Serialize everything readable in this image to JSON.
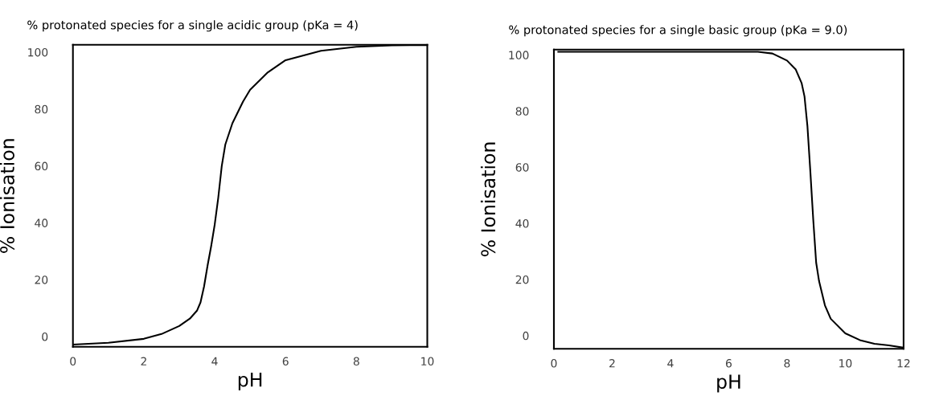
{
  "chart_data": [
    {
      "type": "line",
      "title": "% protonated species for a single acidic group (pKa = 4)",
      "xlabel": "pH",
      "ylabel": "% Ionisation",
      "x": [
        0,
        1,
        2,
        2.5,
        3,
        3.3,
        3.5,
        3.6,
        3.7,
        3.8,
        3.9,
        4,
        4.1,
        4.2,
        4.3,
        4.5,
        4.8,
        5,
        5.5,
        6,
        7,
        8,
        9,
        10
      ],
      "series": [
        {
          "color": "#000000",
          "values": [
            -2.8,
            -2.2,
            -0.8,
            0.9,
            3.7,
            6.3,
            9.1,
            12,
            17.6,
            25,
            31.7,
            39.3,
            48.7,
            60,
            67.5,
            75,
            82.6,
            86.8,
            92.9,
            97.2,
            100.5,
            101.9,
            102.4,
            102.5
          ]
        }
      ],
      "xlim": [
        0,
        10
      ],
      "xticks": [
        0,
        2,
        4,
        6,
        8,
        10
      ],
      "ylim": [
        -3.6,
        102.6
      ],
      "yticks": [
        0,
        20,
        40,
        60,
        80,
        100
      ],
      "grid": false,
      "legend": false
    },
    {
      "type": "line",
      "title": "% protonated species for a single basic group (pKa = 9.0)",
      "xlabel": "pH",
      "ylabel": "% Ionisation",
      "x": [
        0.15,
        7,
        7.5,
        8,
        8.3,
        8.5,
        8.6,
        8.7,
        8.8,
        8.9,
        9.0,
        9.1,
        9.3,
        9.5,
        10,
        10.5,
        11,
        11.5,
        12
      ],
      "series": [
        {
          "color": "#000000",
          "values": [
            101.1,
            101.1,
            100.5,
            98,
            94.8,
            90,
            85.2,
            74.7,
            58.5,
            41.3,
            26,
            19.4,
            10.8,
            6,
            0.8,
            -1.6,
            -2.9,
            -3.5,
            -4.3
          ]
        }
      ],
      "xlim": [
        0,
        12
      ],
      "xticks": [
        0,
        2,
        4,
        6,
        8,
        10,
        12
      ],
      "ylim": [
        -4.7,
        101.9
      ],
      "yticks": [
        0,
        20,
        40,
        60,
        80,
        100
      ],
      "grid": false,
      "legend": false
    }
  ]
}
